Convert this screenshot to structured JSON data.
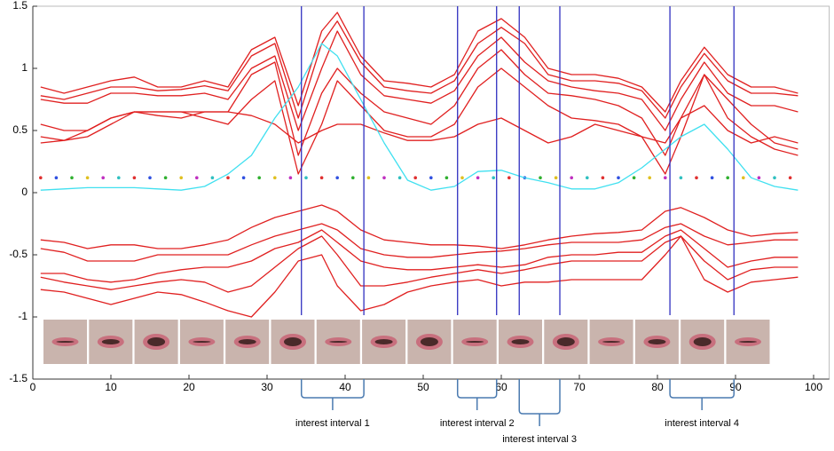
{
  "chart_data": {
    "type": "line",
    "x": [
      1,
      4,
      7,
      10,
      13,
      16,
      19,
      22,
      25,
      28,
      31,
      34,
      37,
      39,
      42,
      45,
      48,
      51,
      54,
      57,
      60,
      63,
      66,
      69,
      72,
      75,
      78,
      81,
      83,
      86,
      89,
      92,
      95,
      98
    ],
    "series": [
      {
        "color": "#e02020",
        "values": [
          0.85,
          0.8,
          0.85,
          0.9,
          0.93,
          0.85,
          0.85,
          0.9,
          0.85,
          1.15,
          1.25,
          0.7,
          1.3,
          1.45,
          1.1,
          0.9,
          0.88,
          0.85,
          0.95,
          1.3,
          1.4,
          1.25,
          1.0,
          0.95,
          0.95,
          0.92,
          0.85,
          0.65,
          0.9,
          1.17,
          0.95,
          0.85,
          0.85,
          0.8
        ]
      },
      {
        "color": "#e02020",
        "values": [
          0.78,
          0.75,
          0.8,
          0.85,
          0.85,
          0.82,
          0.83,
          0.86,
          0.82,
          1.1,
          1.2,
          0.6,
          1.2,
          1.38,
          1.05,
          0.85,
          0.82,
          0.8,
          0.9,
          1.2,
          1.33,
          1.2,
          0.95,
          0.9,
          0.9,
          0.88,
          0.82,
          0.6,
          0.85,
          1.12,
          0.9,
          0.8,
          0.8,
          0.78
        ]
      },
      {
        "color": "#e02020",
        "values": [
          0.75,
          0.72,
          0.72,
          0.8,
          0.8,
          0.78,
          0.78,
          0.8,
          0.75,
          1.0,
          1.1,
          0.5,
          1.0,
          1.3,
          0.95,
          0.78,
          0.75,
          0.72,
          0.82,
          1.1,
          1.25,
          1.05,
          0.9,
          0.85,
          0.82,
          0.8,
          0.75,
          0.5,
          0.75,
          1.05,
          0.8,
          0.7,
          0.7,
          0.65
        ]
      },
      {
        "color": "#e02020",
        "values": [
          0.55,
          0.5,
          0.5,
          0.6,
          0.65,
          0.62,
          0.6,
          0.65,
          0.65,
          0.95,
          1.05,
          0.3,
          0.8,
          1.0,
          0.8,
          0.65,
          0.6,
          0.55,
          0.7,
          1.0,
          1.15,
          0.95,
          0.8,
          0.78,
          0.75,
          0.7,
          0.6,
          0.3,
          0.6,
          0.95,
          0.75,
          0.55,
          0.4,
          0.35
        ]
      },
      {
        "color": "#e02020",
        "values": [
          0.45,
          0.42,
          0.45,
          0.55,
          0.65,
          0.65,
          0.65,
          0.6,
          0.55,
          0.75,
          0.9,
          0.15,
          0.55,
          0.9,
          0.7,
          0.5,
          0.45,
          0.45,
          0.55,
          0.85,
          1.0,
          0.85,
          0.7,
          0.6,
          0.58,
          0.55,
          0.45,
          0.15,
          0.45,
          0.95,
          0.6,
          0.45,
          0.35,
          0.3
        ]
      },
      {
        "color": "#e02020",
        "values": [
          0.4,
          0.42,
          0.5,
          0.6,
          0.65,
          0.65,
          0.65,
          0.65,
          0.65,
          0.62,
          0.55,
          0.4,
          0.5,
          0.55,
          0.55,
          0.48,
          0.42,
          0.42,
          0.45,
          0.55,
          0.6,
          0.5,
          0.4,
          0.45,
          0.55,
          0.5,
          0.45,
          0.4,
          0.6,
          0.7,
          0.5,
          0.4,
          0.45,
          0.4
        ]
      },
      {
        "color": "#40e0f0",
        "values": [
          0.02,
          0.03,
          0.04,
          0.04,
          0.04,
          0.03,
          0.02,
          0.05,
          0.15,
          0.3,
          0.6,
          0.85,
          1.2,
          1.1,
          0.75,
          0.4,
          0.1,
          0.02,
          0.05,
          0.17,
          0.18,
          0.12,
          0.08,
          0.03,
          0.03,
          0.08,
          0.2,
          0.35,
          0.45,
          0.55,
          0.35,
          0.12,
          0.05,
          0.02
        ]
      },
      {
        "color": "#e02020",
        "values": [
          -0.38,
          -0.4,
          -0.45,
          -0.42,
          -0.42,
          -0.45,
          -0.45,
          -0.42,
          -0.38,
          -0.28,
          -0.2,
          -0.15,
          -0.1,
          -0.15,
          -0.3,
          -0.38,
          -0.4,
          -0.42,
          -0.42,
          -0.43,
          -0.45,
          -0.42,
          -0.38,
          -0.35,
          -0.33,
          -0.32,
          -0.3,
          -0.15,
          -0.12,
          -0.2,
          -0.3,
          -0.35,
          -0.33,
          -0.32
        ]
      },
      {
        "color": "#e02020",
        "values": [
          -0.45,
          -0.48,
          -0.55,
          -0.55,
          -0.55,
          -0.5,
          -0.5,
          -0.5,
          -0.5,
          -0.42,
          -0.35,
          -0.3,
          -0.25,
          -0.3,
          -0.45,
          -0.5,
          -0.52,
          -0.52,
          -0.5,
          -0.48,
          -0.47,
          -0.45,
          -0.42,
          -0.4,
          -0.4,
          -0.4,
          -0.38,
          -0.28,
          -0.25,
          -0.35,
          -0.42,
          -0.4,
          -0.38,
          -0.38
        ]
      },
      {
        "color": "#e02020",
        "values": [
          -0.65,
          -0.65,
          -0.7,
          -0.72,
          -0.7,
          -0.65,
          -0.62,
          -0.6,
          -0.6,
          -0.55,
          -0.45,
          -0.4,
          -0.3,
          -0.4,
          -0.55,
          -0.6,
          -0.62,
          -0.62,
          -0.6,
          -0.58,
          -0.6,
          -0.58,
          -0.52,
          -0.5,
          -0.5,
          -0.48,
          -0.48,
          -0.35,
          -0.3,
          -0.45,
          -0.6,
          -0.55,
          -0.52,
          -0.52
        ]
      },
      {
        "color": "#e02020",
        "values": [
          -0.68,
          -0.72,
          -0.75,
          -0.78,
          -0.75,
          -0.72,
          -0.7,
          -0.72,
          -0.8,
          -0.75,
          -0.6,
          -0.45,
          -0.35,
          -0.5,
          -0.75,
          -0.75,
          -0.72,
          -0.68,
          -0.65,
          -0.62,
          -0.65,
          -0.62,
          -0.58,
          -0.55,
          -0.55,
          -0.55,
          -0.55,
          -0.4,
          -0.35,
          -0.55,
          -0.7,
          -0.62,
          -0.6,
          -0.6
        ]
      },
      {
        "color": "#e02020",
        "values": [
          -0.78,
          -0.8,
          -0.85,
          -0.9,
          -0.85,
          -0.8,
          -0.82,
          -0.88,
          -0.95,
          -1.0,
          -0.8,
          -0.55,
          -0.5,
          -0.75,
          -0.95,
          -0.9,
          -0.8,
          -0.75,
          -0.72,
          -0.7,
          -0.75,
          -0.72,
          -0.72,
          -0.7,
          -0.7,
          -0.7,
          -0.7,
          -0.5,
          -0.35,
          -0.7,
          -0.8,
          -0.72,
          -0.7,
          -0.68
        ]
      }
    ],
    "dot_row": {
      "y": 0.12,
      "x": [
        1,
        3,
        5,
        7,
        9,
        11,
        13,
        15,
        17,
        19,
        21,
        23,
        25,
        27,
        29,
        31,
        33,
        35,
        37,
        39,
        41,
        43,
        45,
        47,
        49,
        51,
        53,
        55,
        57,
        59,
        61,
        63,
        65,
        67,
        69,
        71,
        73,
        75,
        77,
        79,
        81,
        83,
        85,
        87,
        89,
        91,
        93,
        95,
        97
      ],
      "colors": [
        "#e03030",
        "#3050e0",
        "#30b030",
        "#e0c020",
        "#c030c0",
        "#30c0c0"
      ]
    },
    "intervals": [
      {
        "label": "interest interval 1",
        "x0": 34.4,
        "x1": 42.4,
        "color": "#3030c0"
      },
      {
        "label": "interest interval 2",
        "x0": 54.4,
        "x1": 59.4,
        "color": "#3030c0"
      },
      {
        "label": "interest interval 3",
        "x0": 62.3,
        "x1": 67.5,
        "color": "#3030c0"
      },
      {
        "label": "interest interval 4",
        "x0": 81.6,
        "x1": 89.8,
        "color": "#3030c0"
      }
    ],
    "xlim": [
      0,
      102
    ],
    "ylim": [
      -1.5,
      1.5
    ],
    "xticks": [
      0,
      10,
      20,
      30,
      40,
      50,
      60,
      70,
      80,
      90,
      100
    ],
    "yticks": [
      -1.5,
      -1,
      -0.5,
      0,
      0.5,
      1,
      1.5
    ]
  }
}
